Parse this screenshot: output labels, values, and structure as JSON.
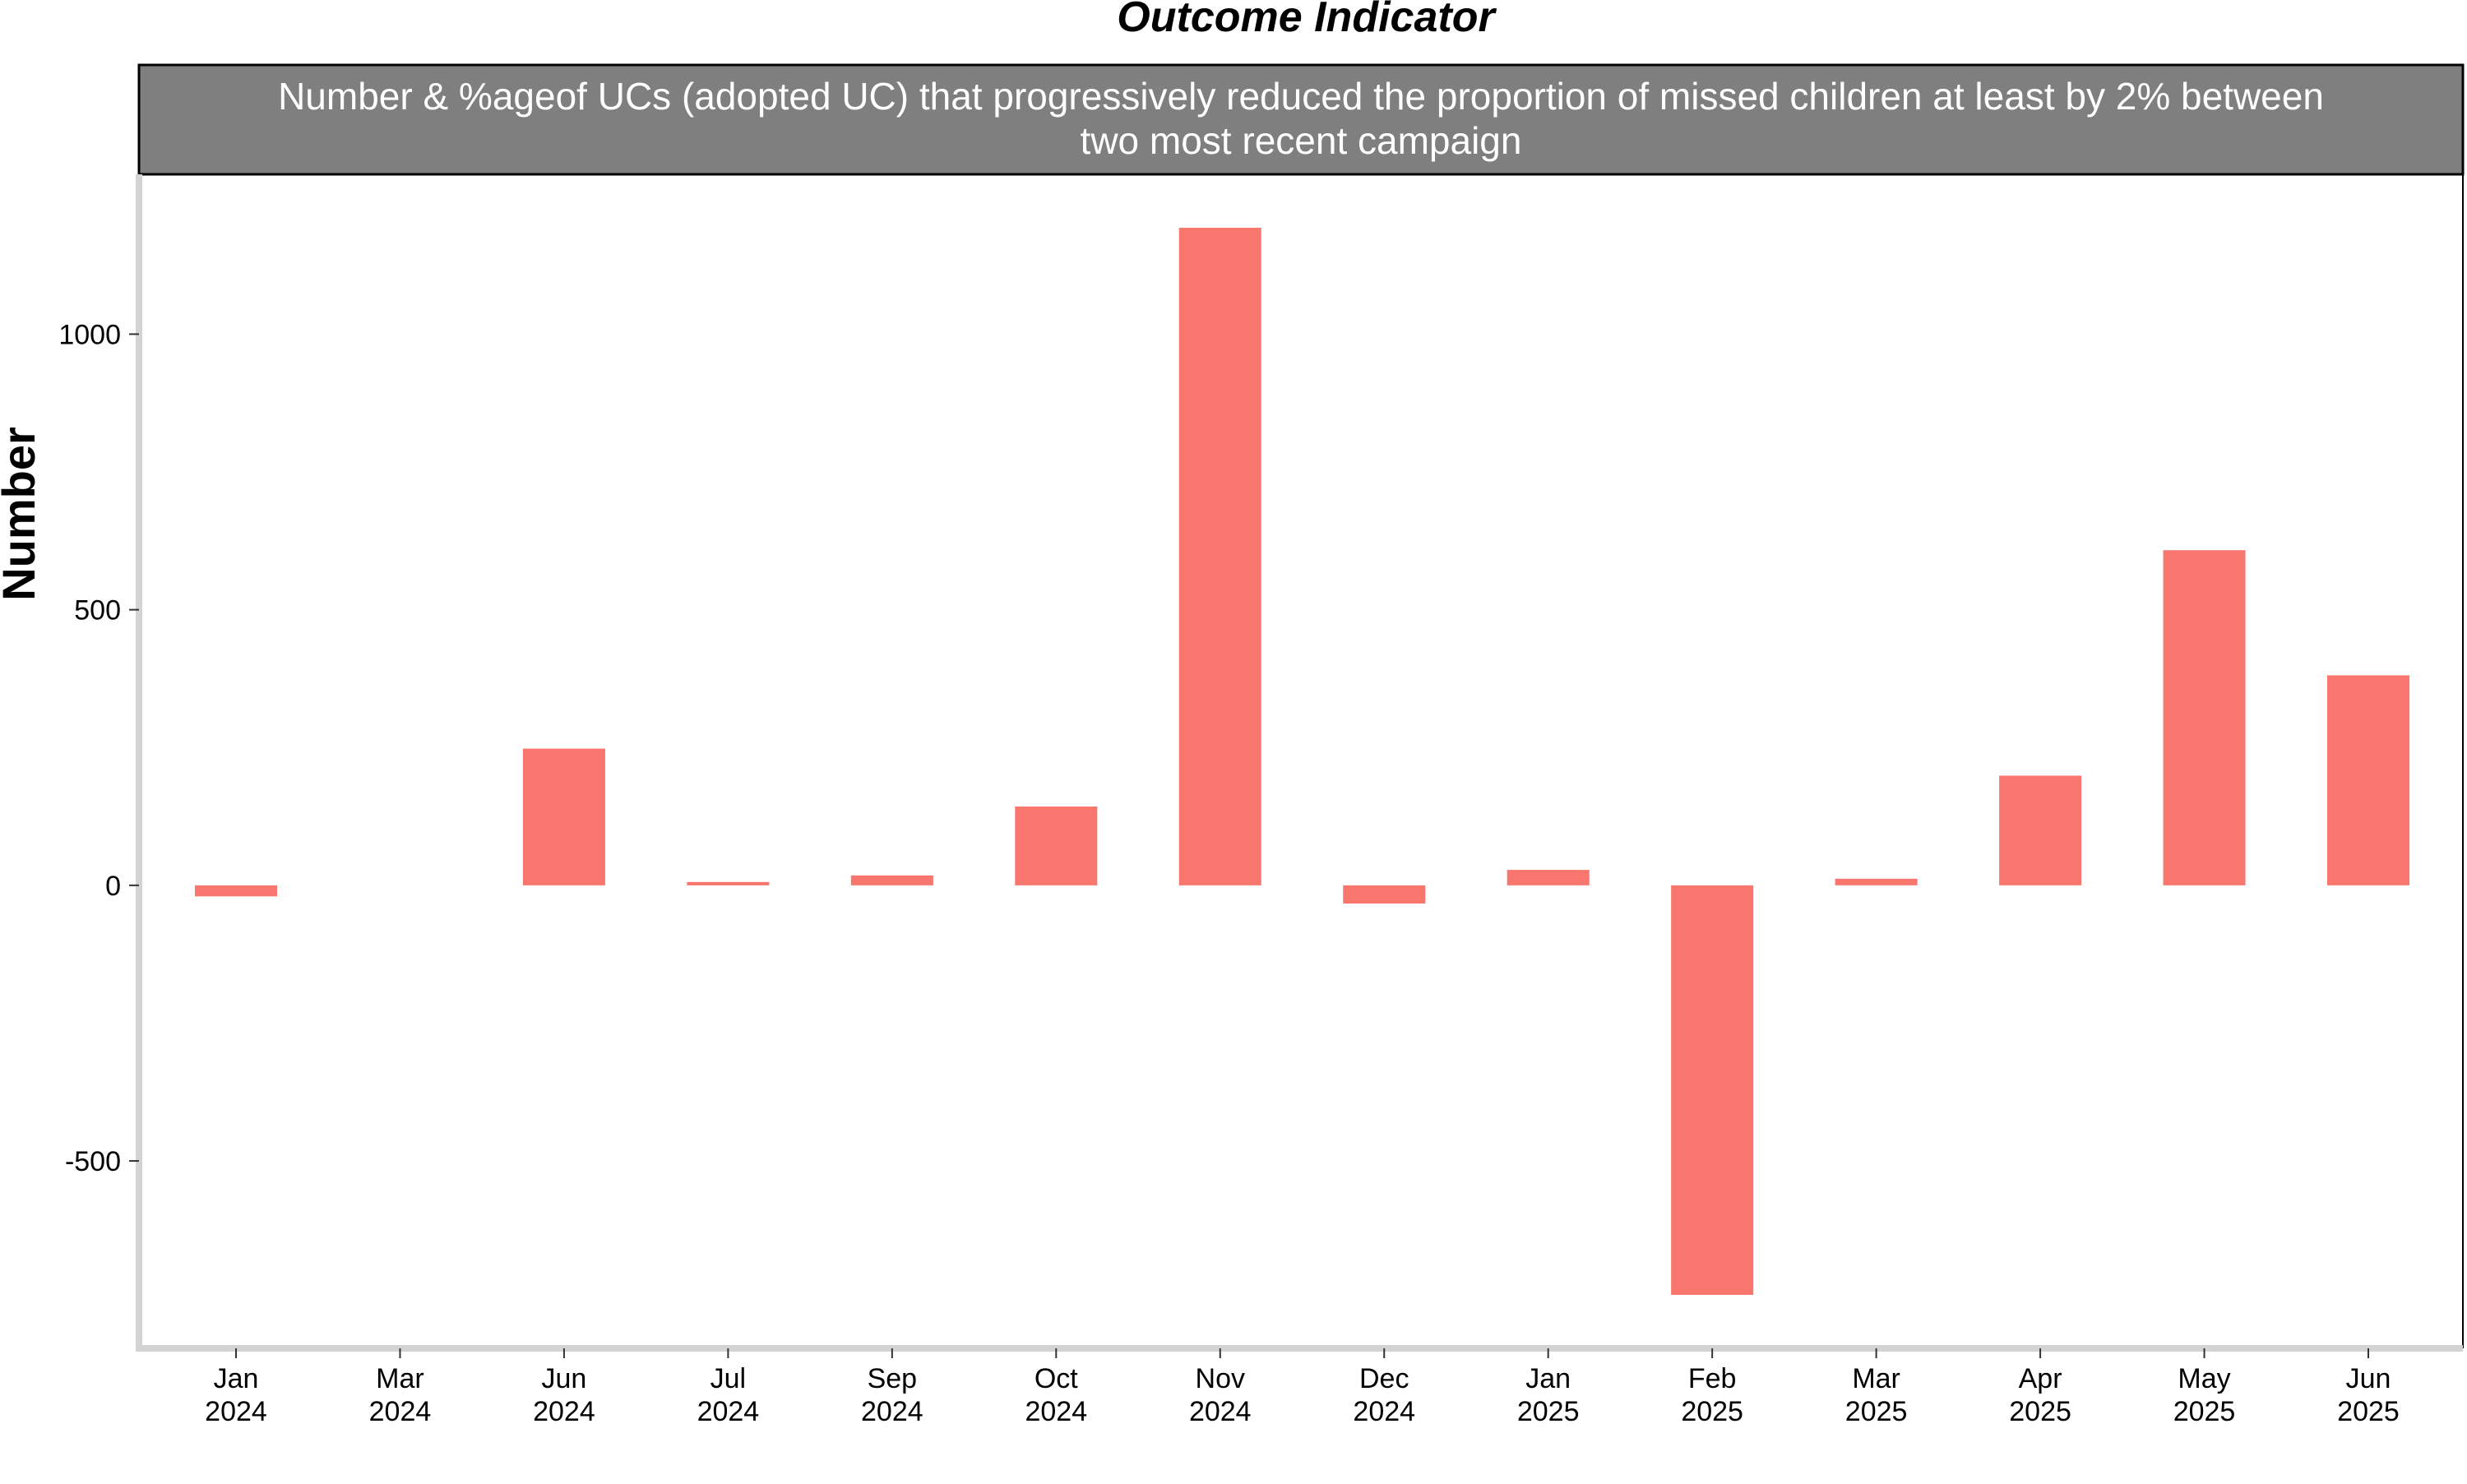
{
  "chart_data": {
    "type": "bar",
    "title": "Outcome Indicator",
    "facet_label_line1": "Number & %ageof UCs (adopted UC) that progressively reduced the proportion of missed children at least by 2% between",
    "facet_label_line2": "two most recent campaign",
    "xlabel": "",
    "ylabel": "Number",
    "ylim": [
      -840,
      1290
    ],
    "yticks": [
      -500,
      0,
      500,
      1000
    ],
    "ytick_labels": [
      "-500",
      "0",
      "500",
      "1000"
    ],
    "grid": false,
    "legend": "none",
    "categories": [
      [
        "Jan",
        "2024"
      ],
      [
        "Mar",
        "2024"
      ],
      [
        "Jun",
        "2024"
      ],
      [
        "Jul",
        "2024"
      ],
      [
        "Sep",
        "2024"
      ],
      [
        "Oct",
        "2024"
      ],
      [
        "Nov",
        "2024"
      ],
      [
        "Dec",
        "2024"
      ],
      [
        "Jan",
        "2025"
      ],
      [
        "Feb",
        "2025"
      ],
      [
        "Mar",
        "2025"
      ],
      [
        "Apr",
        "2025"
      ],
      [
        "May",
        "2025"
      ],
      [
        "Jun",
        "2025"
      ]
    ],
    "values": [
      -20,
      0,
      248,
      6,
      18,
      143,
      1193,
      -33,
      28,
      -743,
      12,
      199,
      608,
      381
    ],
    "colors": {
      "bar": "#F8766D",
      "strip": "#7F7F7F",
      "strip_text": "#FFFFFF",
      "axis": "#D3D3D3",
      "text": "#000000"
    }
  }
}
